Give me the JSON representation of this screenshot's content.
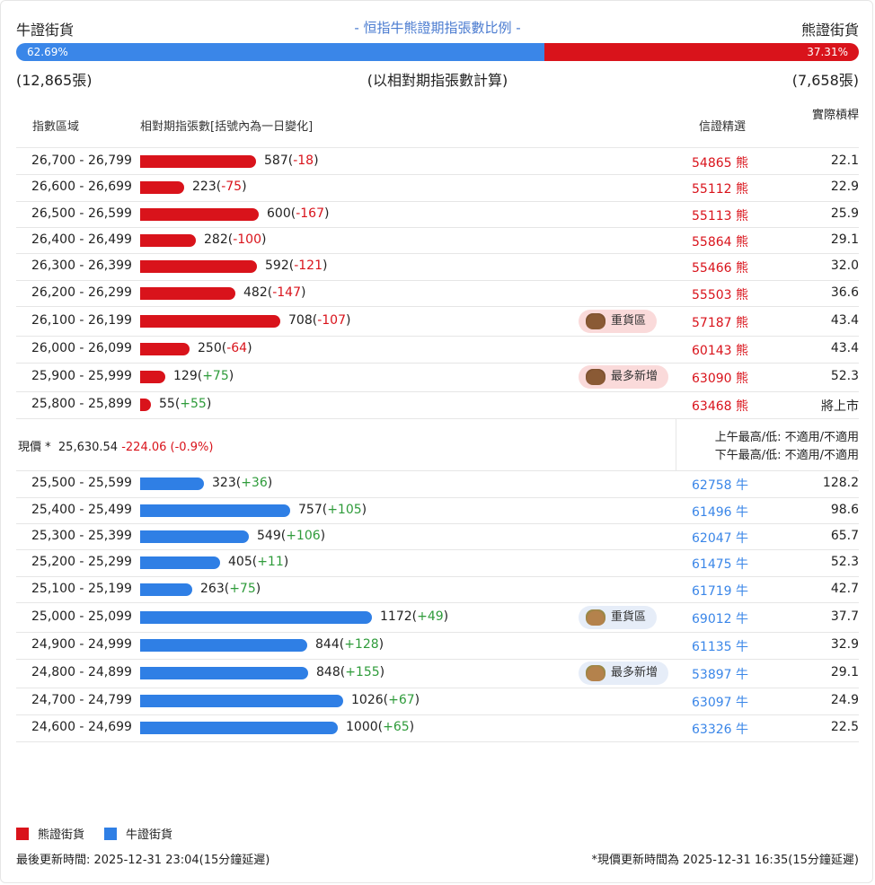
{
  "header": {
    "bull_label": "牛證街貨",
    "title": "- 恒指牛熊證期指張數比例 -",
    "bear_label": "熊證街貨",
    "bull_pct_text": "62.69%",
    "bear_pct_text": "37.31%",
    "bull_fraction": 0.6269,
    "bull_count": "(12,865張)",
    "basis_note": "(以相對期指張數計算)",
    "bear_count": "(7,658張)"
  },
  "columns": {
    "range": "指數區域",
    "contracts": "相對期指張數[括號內為一日變化]",
    "pick": "信證精選",
    "leverage": "實際槓桿"
  },
  "bear_rows": [
    {
      "range": "26,700 - 26,799",
      "value": "587",
      "change": "-18",
      "pick": "54865 熊",
      "leverage": "22.1",
      "badge": ""
    },
    {
      "range": "26,600 - 26,699",
      "value": "223",
      "change": "-75",
      "pick": "55112 熊",
      "leverage": "22.9",
      "badge": ""
    },
    {
      "range": "26,500 - 26,599",
      "value": "600",
      "change": "-167",
      "pick": "55113 熊",
      "leverage": "25.9",
      "badge": ""
    },
    {
      "range": "26,400 - 26,499",
      "value": "282",
      "change": "-100",
      "pick": "55864 熊",
      "leverage": "29.1",
      "badge": ""
    },
    {
      "range": "26,300 - 26,399",
      "value": "592",
      "change": "-121",
      "pick": "55466 熊",
      "leverage": "32.0",
      "badge": ""
    },
    {
      "range": "26,200 - 26,299",
      "value": "482",
      "change": "-147",
      "pick": "55503 熊",
      "leverage": "36.6",
      "badge": ""
    },
    {
      "range": "26,100 - 26,199",
      "value": "708",
      "change": "-107",
      "pick": "57187 熊",
      "leverage": "43.4",
      "badge": "重貨區"
    },
    {
      "range": "26,000 - 26,099",
      "value": "250",
      "change": "-64",
      "pick": "60143 熊",
      "leverage": "43.4",
      "badge": ""
    },
    {
      "range": "25,900 - 25,999",
      "value": "129",
      "change": "+75",
      "pick": "63090 熊",
      "leverage": "52.3",
      "badge": "最多新增"
    },
    {
      "range": "25,800 - 25,899",
      "value": "55",
      "change": "+55",
      "pick": "63468 熊",
      "leverage": "將上市",
      "badge": ""
    }
  ],
  "current": {
    "label": "現價 *",
    "price": "25,630.54",
    "change": "-224.06 (-0.9%)",
    "am_hilo": "上午最高/低: 不適用/不適用",
    "pm_hilo": "下午最高/低: 不適用/不適用"
  },
  "bull_rows": [
    {
      "range": "25,500 - 25,599",
      "value": "323",
      "change": "+36",
      "pick": "62758 牛",
      "leverage": "128.2",
      "badge": ""
    },
    {
      "range": "25,400 - 25,499",
      "value": "757",
      "change": "+105",
      "pick": "61496 牛",
      "leverage": "98.6",
      "badge": ""
    },
    {
      "range": "25,300 - 25,399",
      "value": "549",
      "change": "+106",
      "pick": "62047 牛",
      "leverage": "65.7",
      "badge": ""
    },
    {
      "range": "25,200 - 25,299",
      "value": "405",
      "change": "+11",
      "pick": "61475 牛",
      "leverage": "52.3",
      "badge": ""
    },
    {
      "range": "25,100 - 25,199",
      "value": "263",
      "change": "+75",
      "pick": "61719 牛",
      "leverage": "42.7",
      "badge": ""
    },
    {
      "range": "25,000 - 25,099",
      "value": "1172",
      "change": "+49",
      "pick": "69012 牛",
      "leverage": "37.7",
      "badge": "重貨區"
    },
    {
      "range": "24,900 - 24,999",
      "value": "844",
      "change": "+128",
      "pick": "61135 牛",
      "leverage": "32.9",
      "badge": ""
    },
    {
      "range": "24,800 - 24,899",
      "value": "848",
      "change": "+155",
      "pick": "53897 牛",
      "leverage": "29.1",
      "badge": "最多新增"
    },
    {
      "range": "24,700 - 24,799",
      "value": "1026",
      "change": "+67",
      "pick": "63097 牛",
      "leverage": "24.9",
      "badge": ""
    },
    {
      "range": "24,600 - 24,699",
      "value": "1000",
      "change": "+65",
      "pick": "63326 牛",
      "leverage": "22.5",
      "badge": ""
    }
  ],
  "legend": {
    "bear": "熊證街貨",
    "bull": "牛證街貨"
  },
  "footer": {
    "last_update": "最後更新時間: 2025-12-31 23:04(15分鐘延遲)",
    "price_update": "*現價更新時間為 2025-12-31 16:35(15分鐘延遲)"
  },
  "colors": {
    "bear": "#d9131b",
    "bull": "#2f7fe5",
    "up": "#2e9b3a"
  },
  "icons": {
    "bear_badge": "bear-face-icon",
    "bull_badge": "bull-face-icon"
  }
}
